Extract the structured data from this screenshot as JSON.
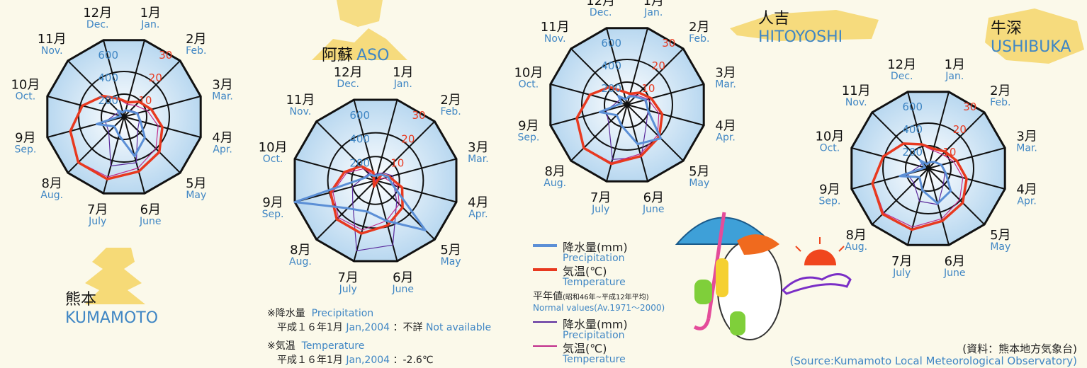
{
  "cities": {
    "kumamoto": {
      "jp": "熊本",
      "en": "KUMAMOTO"
    },
    "aso": {
      "jp": "阿蘇",
      "en": "ASO"
    },
    "hitoyoshi": {
      "jp": "人吉",
      "en": "HITOYOSHI"
    },
    "ushibuka": {
      "jp": "牛深",
      "en": "USHIBUKA"
    }
  },
  "legend": {
    "precip_jp": "降水量(mm)",
    "precip_en": "Precipitation",
    "temp_jp": "気温(℃)",
    "temp_en": "Temperature",
    "normal_jp": "平年値",
    "normal_period_jp": "(昭和46年~平成12年平均)",
    "normal_en": "Normal values(Av.1971～2000)",
    "normal_precip_jp": "降水量(mm)",
    "normal_precip_en": "Precipitation",
    "normal_temp_jp": "気温(℃)",
    "normal_temp_en": "Temperature"
  },
  "notes": {
    "precip_head_jp": "※降水量",
    "precip_head_en": "Precipitation",
    "precip_line_jp": "平成１６年1月",
    "precip_line_en": "Jan,2004",
    "precip_value_jp": "：不詳",
    "precip_value_en": "Not available",
    "temp_head_jp": "※気温",
    "temp_head_en": "Temperature",
    "temp_line_jp": "平成１６年1月",
    "temp_line_en": "Jan,2004",
    "temp_value": "：-2.6℃"
  },
  "source": {
    "jp": "(資料：熊本地方気象台)",
    "en": "(Source:Kumamoto Local Meteorological Observatory)"
  },
  "colors": {
    "precip": "#5b8fd6",
    "temp": "#e8391f",
    "normal_precip": "#5a2a9c",
    "normal_temp": "#c02a8a",
    "disc": "#b9d8f0",
    "ring": "#111111",
    "month_en": "#3f86c4",
    "temp_tick": "#e8391f"
  },
  "chart_data": [
    {
      "type": "radar",
      "station": "熊本 KUMAMOTO",
      "months_jp": [
        "1月",
        "2月",
        "3月",
        "4月",
        "5月",
        "6月",
        "7月",
        "8月",
        "9月",
        "10月",
        "11月",
        "12月"
      ],
      "months_en": [
        "Jan.",
        "Feb.",
        "Mar.",
        "Apr.",
        "May",
        "June",
        "July",
        "Aug.",
        "Sep.",
        "Oct.",
        "Nov.",
        "Dec."
      ],
      "precip_ticks": [
        "200",
        "400",
        "600"
      ],
      "temp_ticks": [
        "10",
        "20",
        "30"
      ],
      "precip_range": [
        0,
        700
      ],
      "temp_range": [
        0,
        35
      ],
      "precipitation": [
        60,
        70,
        120,
        150,
        260,
        360,
        170,
        120,
        250,
        30,
        80,
        40
      ],
      "temperature": [
        6.6,
        9.4,
        12.5,
        17.5,
        22.0,
        25.0,
        28.5,
        28.5,
        24.5,
        19.0,
        13.0,
        8.2
      ],
      "normal_precipitation": [
        60,
        80,
        130,
        140,
        170,
        420,
        450,
        190,
        170,
        80,
        60,
        45
      ],
      "normal_temperature": [
        5.7,
        7.1,
        10.6,
        15.6,
        19.9,
        23.5,
        27.5,
        28.3,
        24.8,
        18.9,
        13.0,
        7.9
      ]
    },
    {
      "type": "radar",
      "station": "阿蘇 ASO",
      "months_jp": [
        "1月",
        "2月",
        "3月",
        "4月",
        "5月",
        "6月",
        "7月",
        "8月",
        "9月",
        "10月",
        "11月",
        "12月"
      ],
      "months_en": [
        "Jan.",
        "Feb.",
        "Mar.",
        "Apr.",
        "May",
        "June",
        "July",
        "Aug.",
        "Sep.",
        "Oct.",
        "Nov.",
        "Dec."
      ],
      "precip_ticks": [
        "200",
        "400",
        "600"
      ],
      "temp_ticks": [
        "10",
        "20",
        "30"
      ],
      "precip_range": [
        0,
        700
      ],
      "temp_range": [
        0,
        35
      ],
      "precipitation": [
        null,
        70,
        110,
        150,
        590,
        350,
        270,
        330,
        700,
        90,
        70,
        40
      ],
      "temperature": [
        -2.6,
        3.5,
        6.0,
        11.5,
        16.0,
        19.5,
        23.0,
        23.0,
        19.5,
        13.5,
        8.5,
        3.5
      ],
      "normal_precipitation": [
        60,
        90,
        150,
        160,
        250,
        560,
        610,
        270,
        200,
        100,
        80,
        50
      ],
      "normal_temperature": [
        -0.5,
        0.5,
        4.0,
        9.5,
        14.0,
        17.5,
        21.5,
        22.0,
        18.5,
        12.5,
        7.0,
        2.0
      ]
    },
    {
      "type": "radar",
      "station": "人吉 HITOYOSHI",
      "months_jp": [
        "1月",
        "2月",
        "3月",
        "4月",
        "5月",
        "6月",
        "7月",
        "8月",
        "9月",
        "10月",
        "11月",
        "12月"
      ],
      "months_en": [
        "Jan.",
        "Feb.",
        "Mar.",
        "Apr.",
        "May",
        "June",
        "July",
        "Aug.",
        "Sep.",
        "Oct.",
        "Nov.",
        "Dec."
      ],
      "precip_ticks": [
        "200",
        "400",
        "600"
      ],
      "temp_ticks": [
        "10",
        "20",
        "30"
      ],
      "precip_range": [
        0,
        700
      ],
      "temp_range": [
        0,
        35
      ],
      "precipitation": [
        80,
        100,
        170,
        190,
        420,
        360,
        190,
        130,
        250,
        50,
        110,
        50
      ],
      "temperature": [
        5.0,
        7.5,
        11.0,
        16.0,
        20.0,
        23.5,
        27.0,
        27.0,
        23.0,
        17.0,
        11.0,
        6.0
      ],
      "normal_precipitation": [
        70,
        100,
        160,
        190,
        240,
        480,
        500,
        230,
        190,
        90,
        80,
        50
      ],
      "normal_temperature": [
        4.5,
        6.0,
        9.5,
        14.5,
        19.0,
        22.5,
        26.5,
        26.8,
        23.0,
        17.0,
        11.0,
        6.0
      ]
    },
    {
      "type": "radar",
      "station": "牛深 USHIBUKA",
      "months_jp": [
        "1月",
        "2月",
        "3月",
        "4月",
        "5月",
        "6月",
        "7月",
        "8月",
        "9月",
        "10月",
        "11月",
        "12月"
      ],
      "months_en": [
        "Jan.",
        "Feb.",
        "Mar.",
        "Apr.",
        "May",
        "June",
        "July",
        "Aug.",
        "Sep.",
        "Oct.",
        "Nov.",
        "Dec."
      ],
      "precip_ticks": [
        "200",
        "400",
        "600"
      ],
      "temp_ticks": [
        "10",
        "20",
        "30"
      ],
      "precip_range": [
        0,
        700
      ],
      "temp_range": [
        0,
        35
      ],
      "precipitation": [
        60,
        80,
        120,
        160,
        280,
        320,
        200,
        110,
        260,
        30,
        100,
        40
      ],
      "temperature": [
        9.0,
        10.5,
        13.0,
        17.5,
        21.5,
        24.0,
        28.0,
        28.5,
        25.5,
        20.5,
        15.5,
        11.0
      ],
      "normal_precipitation": [
        60,
        80,
        120,
        150,
        190,
        330,
        300,
        180,
        190,
        80,
        70,
        50
      ],
      "normal_temperature": [
        8.2,
        8.8,
        11.6,
        15.8,
        19.6,
        23.0,
        26.8,
        27.8,
        25.2,
        20.6,
        15.6,
        10.6
      ]
    }
  ]
}
